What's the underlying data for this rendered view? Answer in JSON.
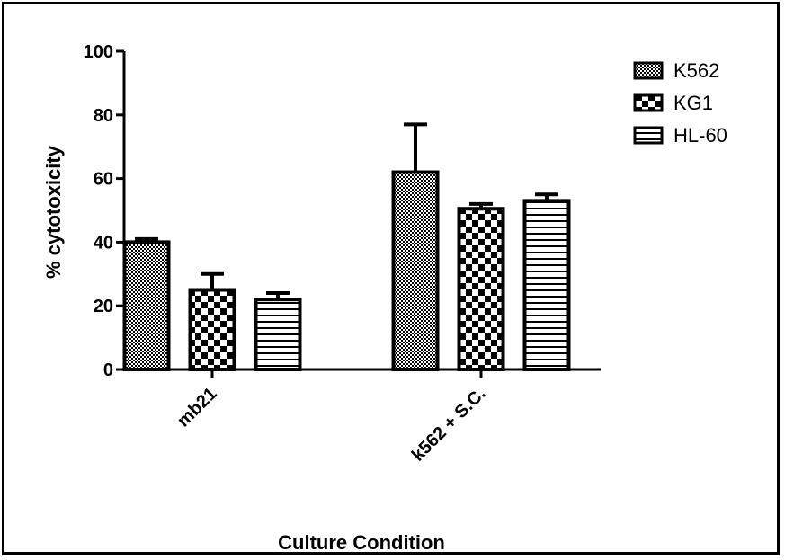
{
  "chart_data": {
    "type": "bar",
    "xlabel": "Culture Condition",
    "ylabel": "% cytotoxicity",
    "ylim": [
      0,
      100
    ],
    "yticks": [
      "0",
      "20",
      "40",
      "60",
      "80",
      "100"
    ],
    "categories": [
      "mb21",
      "k562 + S.C."
    ],
    "series": [
      {
        "name": "K562",
        "values": [
          40,
          62
        ],
        "errors": [
          1,
          15
        ],
        "pattern": "fine-checker"
      },
      {
        "name": "KG1",
        "values": [
          25,
          50.5
        ],
        "errors": [
          5,
          1.5
        ],
        "pattern": "coarse-checker"
      },
      {
        "name": "HL-60",
        "values": [
          22,
          53
        ],
        "errors": [
          2,
          2
        ],
        "pattern": "horizontal-lines"
      }
    ],
    "legend_position": "top-right",
    "grid": false
  }
}
